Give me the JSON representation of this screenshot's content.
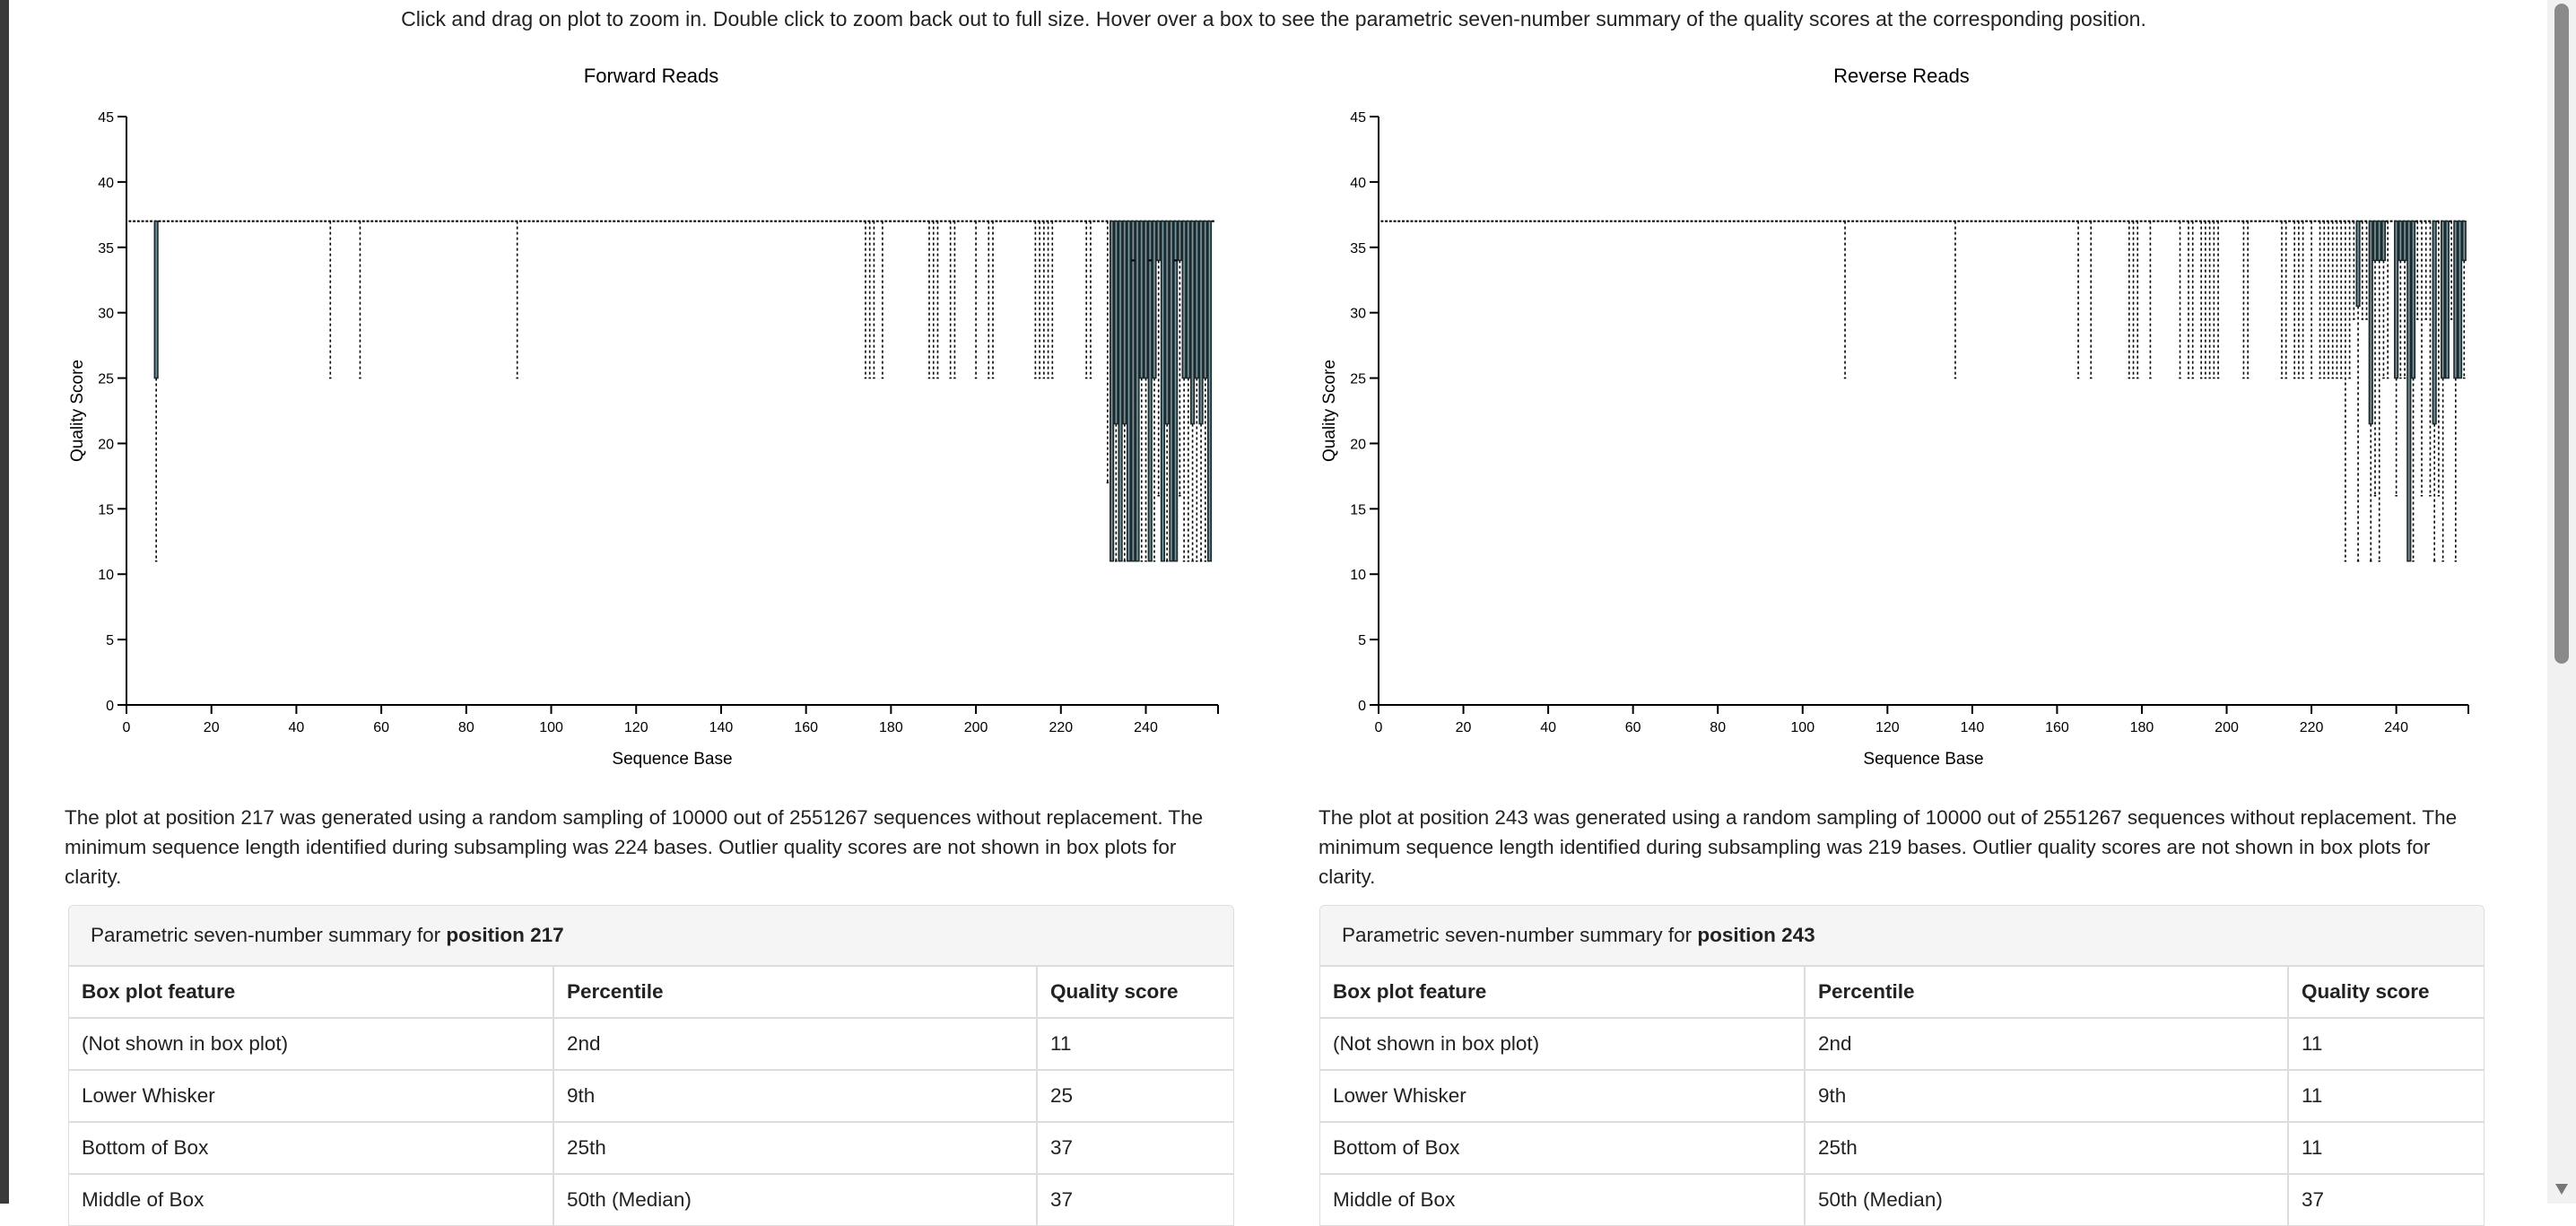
{
  "instructions": "Click and drag on plot to zoom in. Double click to zoom back out to full size. Hover over a box to see the parametric seven-number summary of the quality scores at the corresponding position.",
  "colors": {
    "box_fill": "#56686c",
    "box_stroke": "#1c2a2d",
    "median": "#8fb8c8",
    "whisker": "#000000"
  },
  "chart_data": [
    {
      "type": "box",
      "title": "Forward Reads",
      "xlabel": "Sequence Base",
      "ylabel": "Quality Score",
      "xlim": [
        0,
        257
      ],
      "ylim": [
        0,
        45
      ],
      "xticks": [
        "0",
        "20",
        "40",
        "60",
        "80",
        "100",
        "120",
        "140",
        "160",
        "180",
        "200",
        "220",
        "240"
      ],
      "yticks": [
        "0",
        "5",
        "10",
        "15",
        "20",
        "25",
        "30",
        "35",
        "40",
        "45"
      ],
      "positions": [
        1,
        256
      ],
      "default": {
        "lower_whisker": 37,
        "q1": 37,
        "median": 37,
        "q3": 37,
        "upper_whisker": 37
      },
      "exception_fields": [
        "position",
        "lower_whisker",
        "q1",
        "median",
        "q3",
        "upper_whisker"
      ],
      "exceptions": [
        [
          7,
          11,
          25,
          37,
          37,
          37
        ],
        [
          48,
          25,
          37,
          37,
          37,
          37
        ],
        [
          55,
          25,
          37,
          37,
          37,
          37
        ],
        [
          92,
          25,
          37,
          37,
          37,
          37
        ],
        [
          174,
          25,
          37,
          37,
          37,
          37
        ],
        [
          175,
          25,
          37,
          37,
          37,
          37
        ],
        [
          176,
          25,
          37,
          37,
          37,
          37
        ],
        [
          178,
          25,
          37,
          37,
          37,
          37
        ],
        [
          189,
          25,
          37,
          37,
          37,
          37
        ],
        [
          190,
          25,
          37,
          37,
          37,
          37
        ],
        [
          191,
          25,
          37,
          37,
          37,
          37
        ],
        [
          194,
          25,
          37,
          37,
          37,
          37
        ],
        [
          195,
          25,
          37,
          37,
          37,
          37
        ],
        [
          200,
          25,
          37,
          37,
          37,
          37
        ],
        [
          203,
          25,
          37,
          37,
          37,
          37
        ],
        [
          204,
          25,
          37,
          37,
          37,
          37
        ],
        [
          214,
          25,
          37,
          37,
          37,
          37
        ],
        [
          215,
          25,
          37,
          37,
          37,
          37
        ],
        [
          216,
          25,
          37,
          37,
          37,
          37
        ],
        [
          217,
          25,
          37,
          37,
          37,
          37
        ],
        [
          218,
          25,
          37,
          37,
          37,
          37
        ],
        [
          226,
          25,
          37,
          37,
          37,
          37
        ],
        [
          227,
          25,
          37,
          37,
          37,
          37
        ],
        [
          231,
          17,
          37,
          37,
          37,
          37
        ],
        [
          232,
          11,
          11,
          37,
          37,
          37
        ],
        [
          233,
          11,
          21.5,
          37,
          37,
          37
        ],
        [
          234,
          11,
          11,
          37,
          37,
          37
        ],
        [
          235,
          11,
          21.5,
          37,
          37,
          37
        ],
        [
          236,
          11,
          11,
          37,
          37,
          37
        ],
        [
          237,
          11,
          11,
          34,
          37,
          37
        ],
        [
          238,
          11,
          11,
          37,
          37,
          37
        ],
        [
          239,
          11,
          25,
          37,
          37,
          37
        ],
        [
          240,
          11,
          25,
          37,
          37,
          37
        ],
        [
          241,
          11,
          11,
          34,
          37,
          37
        ],
        [
          242,
          11,
          25,
          37,
          37,
          37
        ],
        [
          243,
          16,
          34,
          37,
          37,
          37
        ],
        [
          244,
          11,
          11,
          37,
          37,
          37
        ],
        [
          245,
          11,
          21.5,
          37,
          37,
          37
        ],
        [
          246,
          11,
          11,
          37,
          37,
          37
        ],
        [
          247,
          11,
          11,
          34,
          37,
          37
        ],
        [
          248,
          16,
          34,
          37,
          37,
          37
        ],
        [
          249,
          11,
          25,
          37,
          37,
          37
        ],
        [
          250,
          11,
          25,
          37,
          37,
          37
        ],
        [
          251,
          11,
          21.5,
          37,
          37,
          37
        ],
        [
          252,
          11,
          25,
          37,
          37,
          37
        ],
        [
          253,
          11,
          21.5,
          37,
          37,
          37
        ],
        [
          254,
          11,
          25,
          37,
          37,
          37
        ],
        [
          255,
          11,
          11,
          37,
          37,
          37
        ]
      ]
    },
    {
      "type": "box",
      "title": "Reverse Reads",
      "xlabel": "Sequence Base",
      "ylabel": "Quality Score",
      "xlim": [
        0,
        257
      ],
      "ylim": [
        0,
        45
      ],
      "xticks": [
        "0",
        "20",
        "40",
        "60",
        "80",
        "100",
        "120",
        "140",
        "160",
        "180",
        "200",
        "220",
        "240"
      ],
      "yticks": [
        "0",
        "5",
        "10",
        "15",
        "20",
        "25",
        "30",
        "35",
        "40",
        "45"
      ],
      "positions": [
        1,
        256
      ],
      "default": {
        "lower_whisker": 37,
        "q1": 37,
        "median": 37,
        "q3": 37,
        "upper_whisker": 37
      },
      "exception_fields": [
        "position",
        "lower_whisker",
        "q1",
        "median",
        "q3",
        "upper_whisker"
      ],
      "exceptions": [
        [
          110,
          25,
          37,
          37,
          37,
          37
        ],
        [
          136,
          25,
          37,
          37,
          37,
          37
        ],
        [
          165,
          25,
          37,
          37,
          37,
          37
        ],
        [
          168,
          25,
          37,
          37,
          37,
          37
        ],
        [
          177,
          25,
          37,
          37,
          37,
          37
        ],
        [
          178,
          25,
          37,
          37,
          37,
          37
        ],
        [
          179,
          25,
          37,
          37,
          37,
          37
        ],
        [
          182,
          25,
          37,
          37,
          37,
          37
        ],
        [
          189,
          25,
          37,
          37,
          37,
          37
        ],
        [
          191,
          25,
          37,
          37,
          37,
          37
        ],
        [
          192,
          25,
          37,
          37,
          37,
          37
        ],
        [
          194,
          25,
          37,
          37,
          37,
          37
        ],
        [
          195,
          25,
          37,
          37,
          37,
          37
        ],
        [
          196,
          25,
          37,
          37,
          37,
          37
        ],
        [
          197,
          25,
          37,
          37,
          37,
          37
        ],
        [
          198,
          25,
          37,
          37,
          37,
          37
        ],
        [
          204,
          25,
          37,
          37,
          37,
          37
        ],
        [
          205,
          25,
          37,
          37,
          37,
          37
        ],
        [
          213,
          25,
          37,
          37,
          37,
          37
        ],
        [
          214,
          25,
          37,
          37,
          37,
          37
        ],
        [
          216,
          25,
          37,
          37,
          37,
          37
        ],
        [
          217,
          25,
          37,
          37,
          37,
          37
        ],
        [
          218,
          25,
          37,
          37,
          37,
          37
        ],
        [
          220,
          25,
          37,
          37,
          37,
          37
        ],
        [
          222,
          25,
          37,
          37,
          37,
          37
        ],
        [
          223,
          25,
          37,
          37,
          37,
          37
        ],
        [
          224,
          25,
          37,
          37,
          37,
          37
        ],
        [
          225,
          25,
          37,
          37,
          37,
          37
        ],
        [
          226,
          25,
          37,
          37,
          37,
          37
        ],
        [
          227,
          25,
          37,
          37,
          37,
          37
        ],
        [
          228,
          11,
          37,
          37,
          37,
          37
        ],
        [
          229,
          25,
          37,
          37,
          37,
          37
        ],
        [
          230,
          29.5,
          37,
          37,
          37,
          37
        ],
        [
          231,
          11,
          30.5,
          37,
          37,
          37
        ],
        [
          232,
          29.5,
          37,
          37,
          37,
          37
        ],
        [
          233,
          29.5,
          37,
          37,
          37,
          37
        ],
        [
          234,
          11,
          21.5,
          37,
          37,
          37
        ],
        [
          235,
          16,
          34,
          37,
          37,
          37
        ],
        [
          236,
          11,
          34,
          37,
          37,
          37
        ],
        [
          237,
          25,
          34,
          37,
          37,
          37
        ],
        [
          238,
          25,
          37,
          37,
          37,
          37
        ],
        [
          240,
          16,
          25,
          37,
          37,
          37
        ],
        [
          241,
          25,
          34,
          37,
          37,
          37
        ],
        [
          242,
          25,
          34,
          37,
          37,
          37
        ],
        [
          243,
          11,
          11,
          37,
          37,
          37
        ],
        [
          244,
          11,
          25,
          37,
          37,
          37
        ],
        [
          245,
          29.5,
          37,
          37,
          37,
          37
        ],
        [
          246,
          16,
          37,
          37,
          37,
          37
        ],
        [
          247,
          29.5,
          37,
          37,
          37,
          37
        ],
        [
          248,
          16,
          37,
          37,
          37,
          37
        ],
        [
          249,
          11,
          21.5,
          37,
          37,
          37
        ],
        [
          250,
          16,
          37,
          37,
          37,
          37
        ],
        [
          251,
          11,
          25,
          37,
          37,
          37
        ],
        [
          252,
          25,
          25,
          37,
          37,
          37
        ],
        [
          253,
          29.5,
          37,
          37,
          37,
          37
        ],
        [
          254,
          11,
          25,
          37,
          37,
          37
        ],
        [
          255,
          25,
          25,
          37,
          37,
          37
        ],
        [
          256,
          25,
          34,
          37,
          37,
          37
        ]
      ]
    }
  ],
  "left": {
    "paragraph": "The plot at position 217 was generated using a random sampling of 10000 out of 2551267 sequences without replacement. The minimum sequence length identified during subsampling was 224 bases. Outlier quality scores are not shown in box plots for clarity.",
    "panel_title_prefix": "Parametric seven-number summary for ",
    "panel_title_bold": "position 217",
    "columns": [
      "Box plot feature",
      "Percentile",
      "Quality score"
    ],
    "rows": [
      [
        "(Not shown in box plot)",
        "2nd",
        "11"
      ],
      [
        "Lower Whisker",
        "9th",
        "25"
      ],
      [
        "Bottom of Box",
        "25th",
        "37"
      ],
      [
        "Middle of Box",
        "50th (Median)",
        "37"
      ]
    ]
  },
  "right": {
    "paragraph": "The plot at position 243 was generated using a random sampling of 10000 out of 2551267 sequences without replacement. The minimum sequence length identified during subsampling was 219 bases. Outlier quality scores are not shown in box plots for clarity.",
    "panel_title_prefix": "Parametric seven-number summary for ",
    "panel_title_bold": "position 243",
    "columns": [
      "Box plot feature",
      "Percentile",
      "Quality score"
    ],
    "rows": [
      [
        "(Not shown in box plot)",
        "2nd",
        "11"
      ],
      [
        "Lower Whisker",
        "9th",
        "11"
      ],
      [
        "Bottom of Box",
        "25th",
        "11"
      ],
      [
        "Middle of Box",
        "50th (Median)",
        "37"
      ]
    ]
  }
}
